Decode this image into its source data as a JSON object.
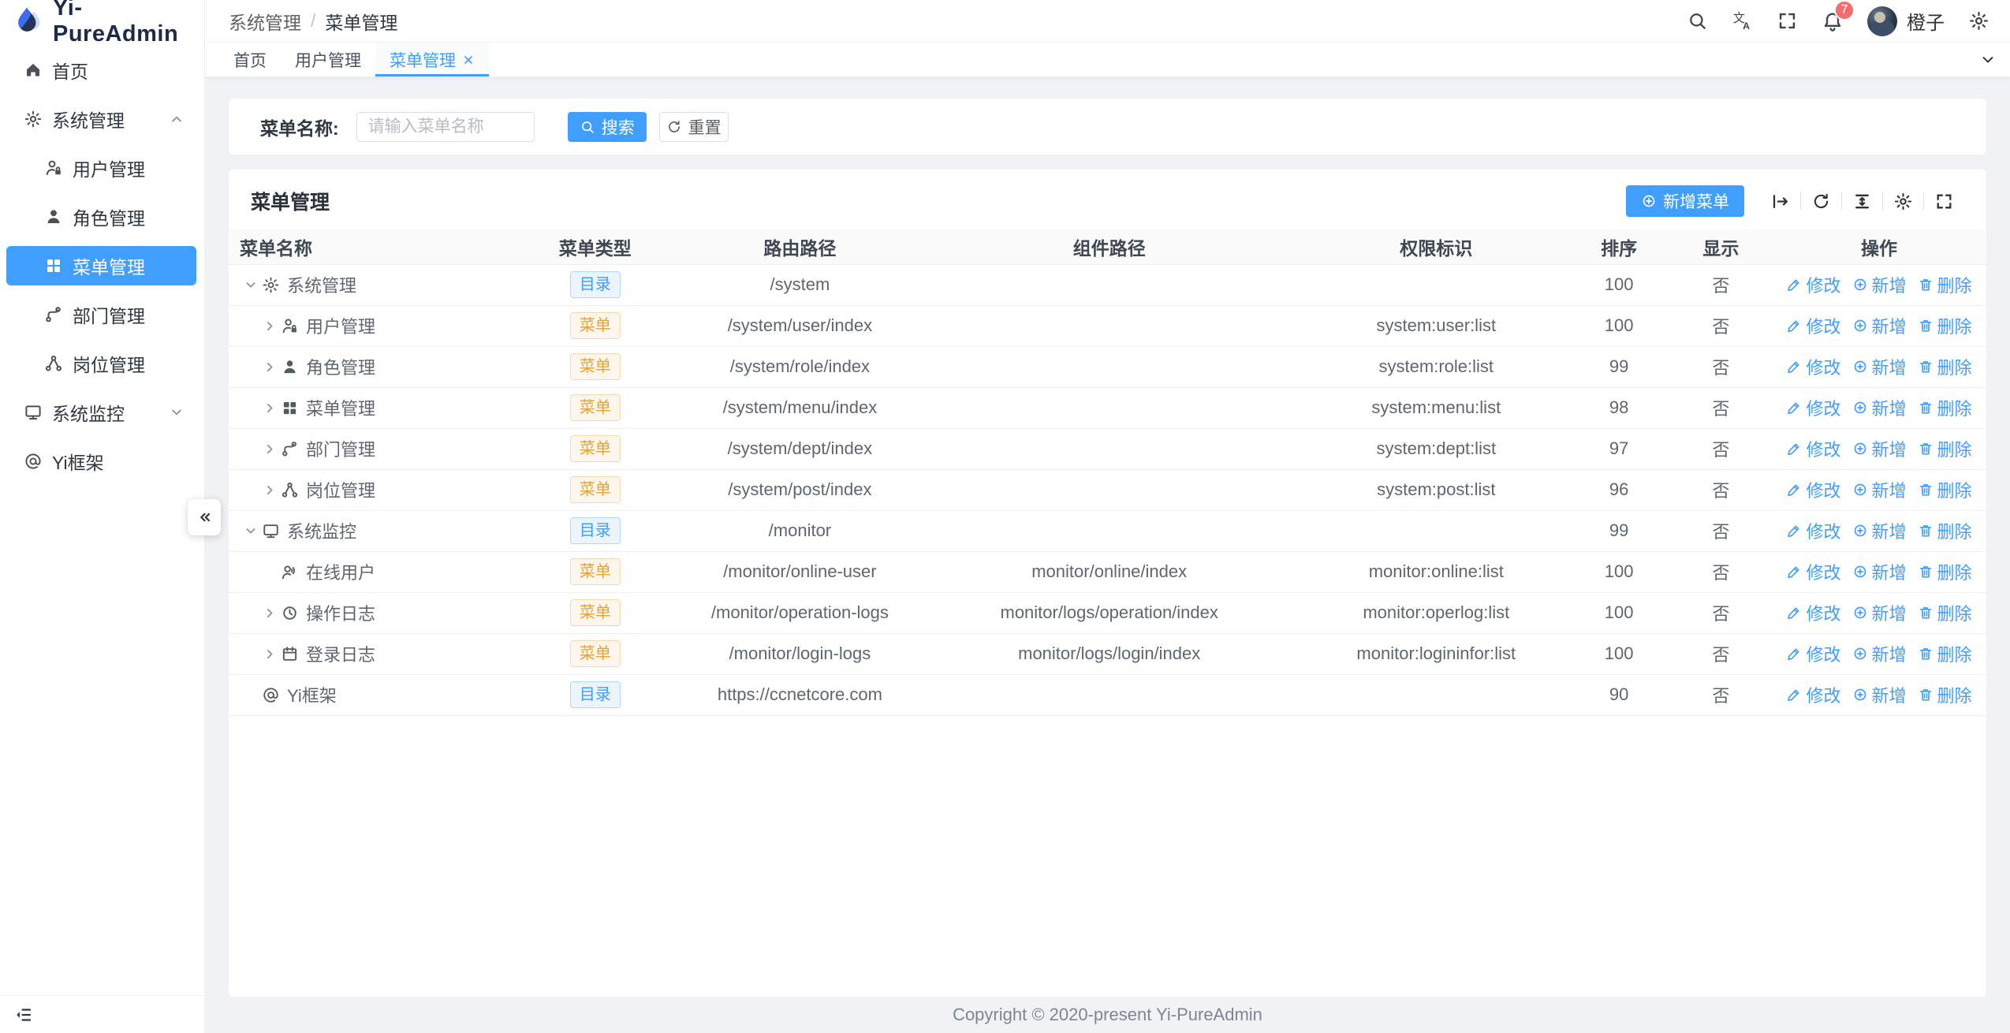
{
  "app": {
    "title": "Yi-PureAdmin",
    "footer": "Copyright © 2020-present Yi-PureAdmin"
  },
  "colors": {
    "primary": "#409eff",
    "tag_dir": "#409eff",
    "tag_menu": "#e6a23c",
    "badge": "#f56c6c",
    "sidebar_active_bg": "#409eff"
  },
  "icons": {
    "logo": "water-drop",
    "header": [
      "search",
      "translate",
      "fullscreen",
      "bell",
      "settings"
    ],
    "card_tools": [
      "arrow-from-line",
      "refresh",
      "density",
      "gear",
      "fullscreen"
    ],
    "sidebar_collapse": "double-left-arrows",
    "sidebar_fold": "menu-fold"
  },
  "header": {
    "breadcrumb": [
      "系统管理",
      "菜单管理"
    ],
    "badge_count": "7",
    "user_name": "橙子"
  },
  "tabs": [
    {
      "key": "home",
      "label": "首页",
      "active": false,
      "closable": false
    },
    {
      "key": "user-management",
      "label": "用户管理",
      "active": false,
      "closable": false
    },
    {
      "key": "menu-management",
      "label": "菜单管理",
      "active": true,
      "closable": true
    }
  ],
  "sidebar": {
    "items": [
      {
        "key": "home",
        "label": "首页",
        "icon": "home",
        "level": 0,
        "group": false,
        "active": false
      },
      {
        "key": "system-management",
        "label": "系统管理",
        "icon": "gear",
        "level": 0,
        "group": true,
        "state": "open",
        "active": false
      },
      {
        "key": "user-management",
        "label": "用户管理",
        "icon": "user-lock",
        "level": 1,
        "group": false,
        "active": false
      },
      {
        "key": "role-management",
        "label": "角色管理",
        "icon": "user-fill",
        "level": 1,
        "group": false,
        "active": false
      },
      {
        "key": "menu-management",
        "label": "菜单管理",
        "icon": "grid",
        "level": 1,
        "group": false,
        "active": true
      },
      {
        "key": "dept-management",
        "label": "部门管理",
        "icon": "branch",
        "level": 1,
        "group": false,
        "active": false
      },
      {
        "key": "post-management",
        "label": "岗位管理",
        "icon": "nodes",
        "level": 1,
        "group": false,
        "active": false
      },
      {
        "key": "system-monitor",
        "label": "系统监控",
        "icon": "monitor",
        "level": 0,
        "group": true,
        "state": "closed",
        "active": false
      },
      {
        "key": "yi-framework",
        "label": "Yi框架",
        "icon": "at",
        "level": 0,
        "group": false,
        "active": false
      }
    ]
  },
  "search": {
    "label": "菜单名称:",
    "placeholder": "请输入菜单名称",
    "search_label": "搜索",
    "reset_label": "重置"
  },
  "card": {
    "title": "菜单管理",
    "add_label": "新增菜单"
  },
  "table": {
    "columns": [
      "菜单名称",
      "菜单类型",
      "路由路径",
      "组件路径",
      "权限标识",
      "排序",
      "显示",
      "操作"
    ],
    "actions": [
      {
        "key": "edit",
        "label": "修改",
        "icon": "edit"
      },
      {
        "key": "add",
        "label": "新增",
        "icon": "plus-circle"
      },
      {
        "key": "delete",
        "label": "删除",
        "icon": "trash"
      }
    ],
    "rows": [
      {
        "key": "system-management",
        "level": 0,
        "expand": "open",
        "icon": "gear",
        "name": "系统管理",
        "type": "目录",
        "type_kind": "dir",
        "route": "/system",
        "component": "",
        "perm": "",
        "sort": "100",
        "show": "否"
      },
      {
        "key": "user-management",
        "level": 1,
        "expand": "closed",
        "icon": "user-lock",
        "name": "用户管理",
        "type": "菜单",
        "type_kind": "menu",
        "route": "/system/user/index",
        "component": "",
        "perm": "system:user:list",
        "sort": "100",
        "show": "否"
      },
      {
        "key": "role-management",
        "level": 1,
        "expand": "closed",
        "icon": "user-fill",
        "name": "角色管理",
        "type": "菜单",
        "type_kind": "menu",
        "route": "/system/role/index",
        "component": "",
        "perm": "system:role:list",
        "sort": "99",
        "show": "否"
      },
      {
        "key": "menu-management",
        "level": 1,
        "expand": "closed",
        "icon": "grid",
        "name": "菜单管理",
        "type": "菜单",
        "type_kind": "menu",
        "route": "/system/menu/index",
        "component": "",
        "perm": "system:menu:list",
        "sort": "98",
        "show": "否"
      },
      {
        "key": "dept-management",
        "level": 1,
        "expand": "closed",
        "icon": "branch",
        "name": "部门管理",
        "type": "菜单",
        "type_kind": "menu",
        "route": "/system/dept/index",
        "component": "",
        "perm": "system:dept:list",
        "sort": "97",
        "show": "否"
      },
      {
        "key": "post-management",
        "level": 1,
        "expand": "closed",
        "icon": "nodes",
        "name": "岗位管理",
        "type": "菜单",
        "type_kind": "menu",
        "route": "/system/post/index",
        "component": "",
        "perm": "system:post:list",
        "sort": "96",
        "show": "否"
      },
      {
        "key": "system-monitor",
        "level": 0,
        "expand": "open",
        "icon": "monitor",
        "name": "系统监控",
        "type": "目录",
        "type_kind": "dir",
        "route": "/monitor",
        "component": "",
        "perm": "",
        "sort": "99",
        "show": "否"
      },
      {
        "key": "online-user",
        "level": 1,
        "expand": "none",
        "icon": "user-online",
        "name": "在线用户",
        "type": "菜单",
        "type_kind": "menu",
        "route": "/monitor/online-user",
        "component": "monitor/online/index",
        "perm": "monitor:online:list",
        "sort": "100",
        "show": "否"
      },
      {
        "key": "operation-logs",
        "level": 1,
        "expand": "closed",
        "icon": "clock",
        "name": "操作日志",
        "type": "菜单",
        "type_kind": "menu",
        "route": "/monitor/operation-logs",
        "component": "monitor/logs/operation/index",
        "perm": "monitor:operlog:list",
        "sort": "100",
        "show": "否"
      },
      {
        "key": "login-logs",
        "level": 1,
        "expand": "closed",
        "icon": "calendar",
        "name": "登录日志",
        "type": "菜单",
        "type_kind": "menu",
        "route": "/monitor/login-logs",
        "component": "monitor/logs/login/index",
        "perm": "monitor:logininfor:list",
        "sort": "100",
        "show": "否"
      },
      {
        "key": "yi-framework",
        "level": 0,
        "expand": "none",
        "icon": "at",
        "name": "Yi框架",
        "type": "目录",
        "type_kind": "dir",
        "route": "https://ccnetcore.com",
        "component": "",
        "perm": "",
        "sort": "90",
        "show": "否"
      }
    ]
  }
}
